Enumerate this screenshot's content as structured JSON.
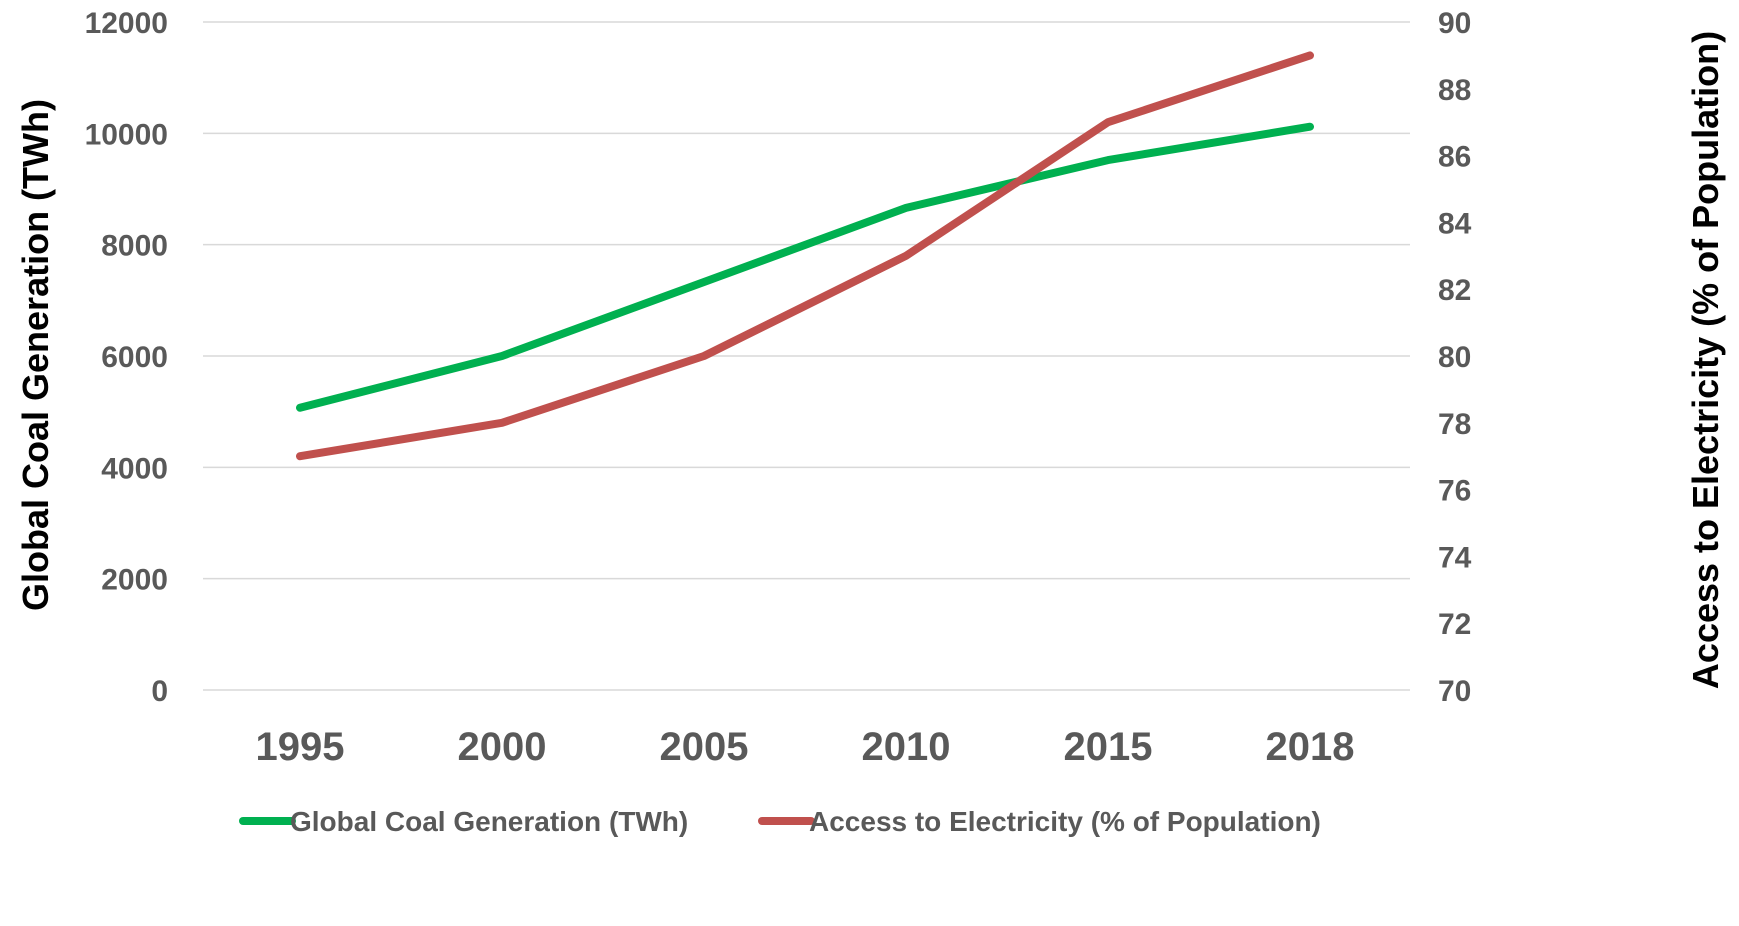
{
  "chart_data": {
    "type": "line",
    "x": [
      "1995",
      "2000",
      "2005",
      "2010",
      "2015",
      "2018"
    ],
    "series": [
      {
        "name": "Global Coal Generation (TWh)",
        "axis": "left",
        "values": [
          5070,
          6000,
          7330,
          8660,
          9520,
          10120
        ]
      },
      {
        "name": "Access to Electricity (% of Population)",
        "axis": "right",
        "values": [
          77,
          78,
          80,
          83,
          87,
          89
        ]
      }
    ],
    "y_left": {
      "label": "Global Coal Generation (TWh)",
      "ylim": [
        0,
        12000
      ],
      "ticks": [
        "0",
        "2000",
        "4000",
        "6000",
        "8000",
        "10000",
        "12000"
      ]
    },
    "y_right": {
      "label": "Access to Electricity (% of Population)",
      "ylim": [
        70,
        90
      ],
      "ticks": [
        "70",
        "72",
        "74",
        "76",
        "78",
        "80",
        "82",
        "84",
        "86",
        "88",
        "90"
      ]
    },
    "colors": {
      "series_1": "#00b050",
      "series_2": "#c0504d"
    },
    "grid": true,
    "legend_position": "bottom"
  }
}
